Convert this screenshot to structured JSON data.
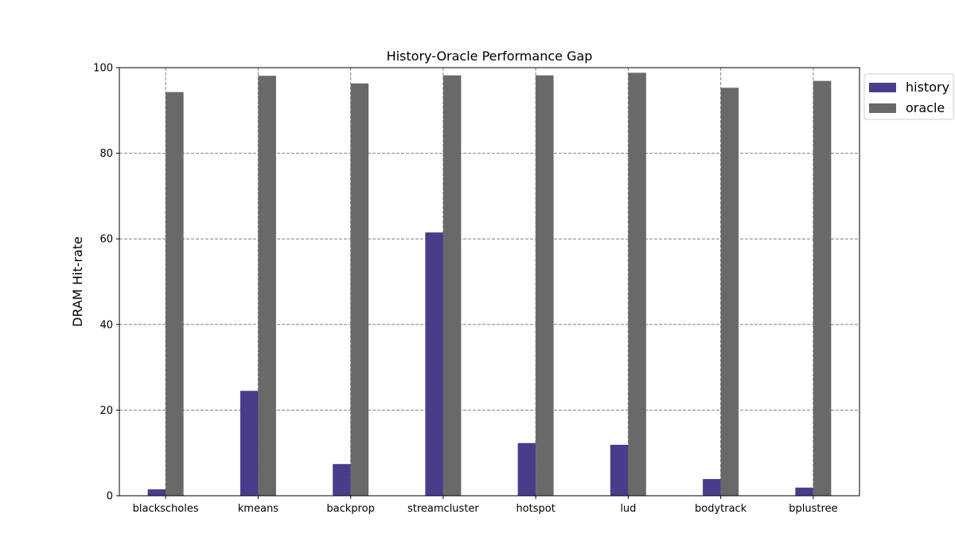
{
  "chart_data": {
    "type": "bar",
    "title": "History-Oracle Performance Gap",
    "xlabel": "",
    "ylabel": "DRAM Hit-rate",
    "categories": [
      "blackscholes",
      "kmeans",
      "backprop",
      "streamcluster",
      "hotspot",
      "lud",
      "bodytrack",
      "bplustree"
    ],
    "series": [
      {
        "name": "history",
        "color": "#483d8b",
        "values": [
          1.5,
          24.5,
          7.4,
          61.5,
          12.3,
          11.9,
          3.9,
          1.9
        ]
      },
      {
        "name": "oracle",
        "color": "#696969",
        "values": [
          94.3,
          98.1,
          96.3,
          98.2,
          98.2,
          98.8,
          95.3,
          96.9
        ]
      }
    ],
    "ylim": [
      0,
      100
    ],
    "yticks": [
      0,
      20,
      40,
      60,
      80,
      100
    ],
    "grid": true,
    "grid_style": "dashed",
    "legend_position": "upper-right-outside"
  }
}
